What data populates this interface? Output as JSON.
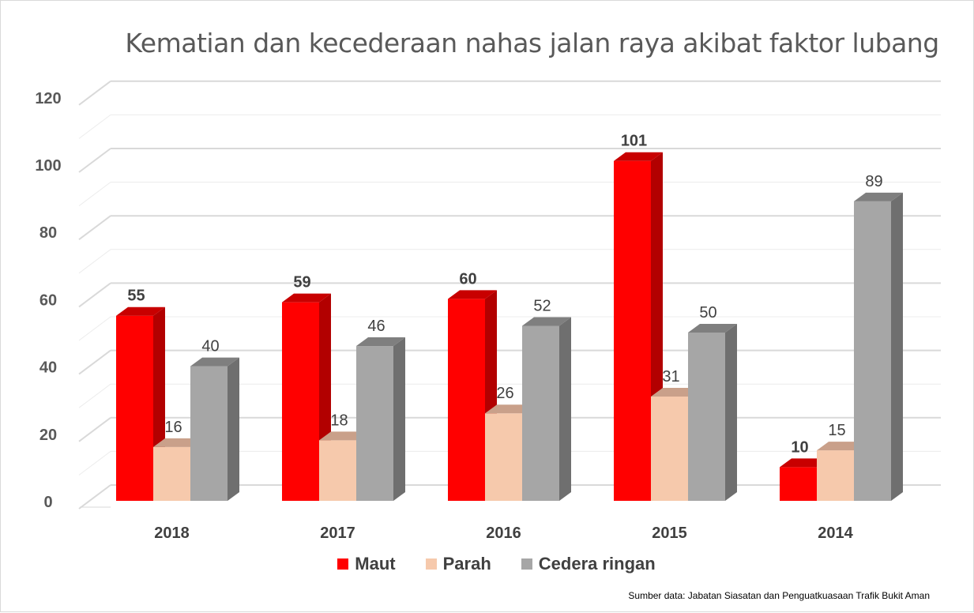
{
  "chart_data": {
    "type": "bar",
    "title": "Kematian dan kecederaan nahas jalan raya akibat faktor lubang",
    "categories": [
      "2018",
      "2017",
      "2016",
      "2015",
      "2014"
    ],
    "series": [
      {
        "name": "Maut",
        "values": [
          55,
          59,
          60,
          101,
          10
        ],
        "color": "#ff0000",
        "side_color": "#b20000",
        "top_color": "#c80000",
        "label_bold": true
      },
      {
        "name": "Parah",
        "values": [
          16,
          18,
          26,
          31,
          15
        ],
        "color": "#f6c9ac",
        "side_color": "#d9a98b",
        "top_color": "#c9a08a",
        "label_bold": false
      },
      {
        "name": "Cedera ringan",
        "values": [
          40,
          46,
          52,
          50,
          89
        ],
        "color": "#a6a6a6",
        "side_color": "#6f6f6f",
        "top_color": "#7f7f7f",
        "label_bold": false
      }
    ],
    "yticks": [
      0,
      20,
      40,
      60,
      80,
      100,
      120
    ],
    "ylim": [
      0,
      120
    ],
    "grid": true,
    "legend_position": "bottom",
    "style": "3d-column"
  },
  "footer": {
    "source": "Sumber data: Jabatan Siasatan dan Penguatkuasaan Trafik Bukit Aman"
  }
}
